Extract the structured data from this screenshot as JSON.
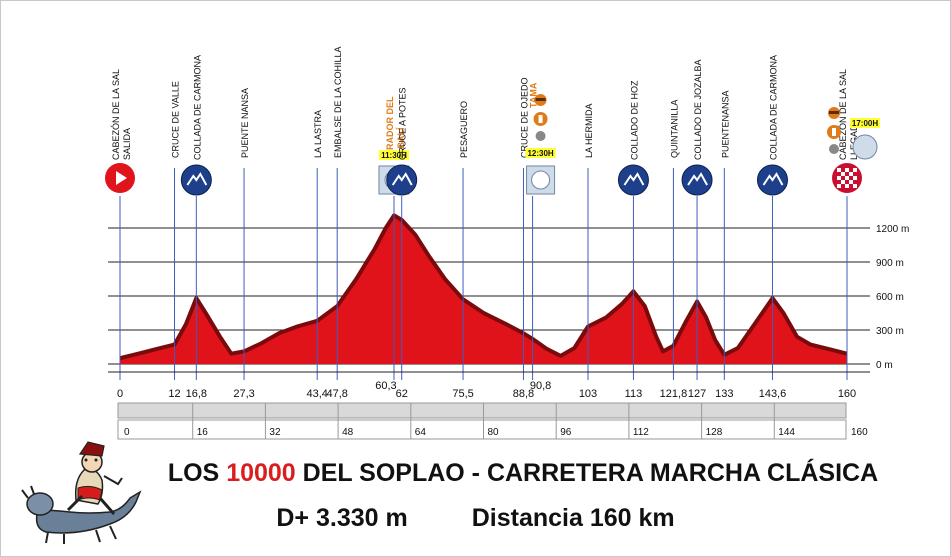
{
  "chart_data": {
    "type": "area",
    "title": "LOS 10000 DEL SOPLAO - CARRETERA MARCHA CLÁSICA",
    "title_parts": [
      "LOS ",
      "10000",
      " DEL SOPLAO  - CARRETERA MARCHA CLÁSICA"
    ],
    "subtitle_elevation": "D+ 3.330  m",
    "subtitle_distance": "Distancia 160 km",
    "xlim": [
      0,
      160
    ],
    "ylim": [
      0,
      1400
    ],
    "y_ticks": [
      {
        "value": 0,
        "label": "0 m"
      },
      {
        "value": 300,
        "label": "300 m"
      },
      {
        "value": 600,
        "label": "600 m"
      },
      {
        "value": 900,
        "label": "900 m"
      },
      {
        "value": 1200,
        "label": "1200 m"
      }
    ],
    "x_scale_ticks": [
      "0",
      "16",
      "32",
      "48",
      "64",
      "80",
      "96",
      "112",
      "128",
      "144",
      "160"
    ],
    "profile": [
      {
        "km": 0,
        "alt": 60
      },
      {
        "km": 4,
        "alt": 100
      },
      {
        "km": 8,
        "alt": 140
      },
      {
        "km": 12,
        "alt": 180
      },
      {
        "km": 14.5,
        "alt": 360
      },
      {
        "km": 16.8,
        "alt": 590
      },
      {
        "km": 19,
        "alt": 450
      },
      {
        "km": 22,
        "alt": 250
      },
      {
        "km": 24.5,
        "alt": 100
      },
      {
        "km": 27.3,
        "alt": 120
      },
      {
        "km": 31,
        "alt": 190
      },
      {
        "km": 35,
        "alt": 280
      },
      {
        "km": 39,
        "alt": 340
      },
      {
        "km": 43.4,
        "alt": 390
      },
      {
        "km": 47.8,
        "alt": 520
      },
      {
        "km": 52,
        "alt": 760
      },
      {
        "km": 56,
        "alt": 1020
      },
      {
        "km": 58.5,
        "alt": 1210
      },
      {
        "km": 60.3,
        "alt": 1320
      },
      {
        "km": 62,
        "alt": 1280
      },
      {
        "km": 65,
        "alt": 1150
      },
      {
        "km": 68,
        "alt": 960
      },
      {
        "km": 71.5,
        "alt": 760
      },
      {
        "km": 75.5,
        "alt": 580
      },
      {
        "km": 80,
        "alt": 460
      },
      {
        "km": 85,
        "alt": 360
      },
      {
        "km": 88.8,
        "alt": 280
      },
      {
        "km": 90.8,
        "alt": 230
      },
      {
        "km": 94,
        "alt": 140
      },
      {
        "km": 97,
        "alt": 80
      },
      {
        "km": 100,
        "alt": 150
      },
      {
        "km": 103,
        "alt": 340
      },
      {
        "km": 107,
        "alt": 420
      },
      {
        "km": 110.5,
        "alt": 540
      },
      {
        "km": 113,
        "alt": 650
      },
      {
        "km": 115.5,
        "alt": 520
      },
      {
        "km": 118,
        "alt": 250
      },
      {
        "km": 119.5,
        "alt": 120
      },
      {
        "km": 121.8,
        "alt": 170
      },
      {
        "km": 124.5,
        "alt": 380
      },
      {
        "km": 127,
        "alt": 560
      },
      {
        "km": 129,
        "alt": 420
      },
      {
        "km": 131,
        "alt": 220
      },
      {
        "km": 133,
        "alt": 90
      },
      {
        "km": 136,
        "alt": 150
      },
      {
        "km": 140,
        "alt": 380
      },
      {
        "km": 143.6,
        "alt": 590
      },
      {
        "km": 146,
        "alt": 460
      },
      {
        "km": 149,
        "alt": 250
      },
      {
        "km": 152,
        "alt": 180
      },
      {
        "km": 156,
        "alt": 140
      },
      {
        "km": 160,
        "alt": 100
      }
    ],
    "waypoints": [
      {
        "km": 0,
        "km_label": "0",
        "label": "CABEZÓN DE LA SAL",
        "label2": "SALIDA",
        "kind": "start",
        "orange": false
      },
      {
        "km": 12,
        "km_label": "12",
        "label": "CRUCE DE VALLE",
        "label2": "",
        "kind": "none",
        "orange": false
      },
      {
        "km": 16.8,
        "km_label": "16,8",
        "label": "COLLADA DE CARMONA",
        "label2": "",
        "kind": "climb",
        "orange": false
      },
      {
        "km": 27.3,
        "km_label": "27,3",
        "label": "PUENTE NANSA",
        "label2": "",
        "kind": "none",
        "orange": false
      },
      {
        "km": 43.4,
        "km_label": "43,4",
        "label": "LA LASTRA",
        "label2": "",
        "kind": "none",
        "orange": false
      },
      {
        "km": 47.8,
        "km_label": "47,8",
        "label": "EMBALSE DE LA COHILLA",
        "label2": "",
        "kind": "none",
        "orange": false
      },
      {
        "km": 60.3,
        "km_label": "60,3",
        "label": "MIRADOR DEL",
        "label2": "JABALÍ",
        "kind": "clock",
        "orange": true,
        "time": "11:30H"
      },
      {
        "km": 62,
        "km_label": "62",
        "label": "CRUCE A POTES",
        "label2": "",
        "kind": "climb",
        "orange": false
      },
      {
        "km": 75.5,
        "km_label": "75,5",
        "label": "PESAGUERO",
        "label2": "",
        "kind": "none",
        "orange": false
      },
      {
        "km": 88.8,
        "km_label": "88,8",
        "label": "CRUCE DE OJEDO",
        "label2": "",
        "kind": "none",
        "orange": false
      },
      {
        "km": 90.8,
        "km_label": "90,8",
        "label": "TAMA",
        "label2": "",
        "kind": "feed",
        "orange": true,
        "time": "12:30H"
      },
      {
        "km": 103,
        "km_label": "103",
        "label": "LA HERMIDA",
        "label2": "",
        "kind": "none",
        "orange": false
      },
      {
        "km": 113,
        "km_label": "113",
        "label": "COLLADO DE HOZ",
        "label2": "",
        "kind": "climb",
        "orange": false
      },
      {
        "km": 121.8,
        "km_label": "121,8",
        "label": "QUINTANILLA",
        "label2": "",
        "kind": "none",
        "orange": false
      },
      {
        "km": 127,
        "km_label": "127",
        "label": "COLLADO DE JOZALBA",
        "label2": "",
        "kind": "climb",
        "orange": false
      },
      {
        "km": 133,
        "km_label": "133",
        "label": "PUENTENANSA",
        "label2": "",
        "kind": "none",
        "orange": false
      },
      {
        "km": 143.6,
        "km_label": "143,6",
        "label": "COLLADA DE CARMONA",
        "label2": "",
        "kind": "climb",
        "orange": false
      },
      {
        "km": 160,
        "km_label": "160",
        "label": "CABEZÓN DE LA SAL",
        "label2": "LLEGADA",
        "kind": "finish",
        "orange": false,
        "time": "17:00H"
      }
    ],
    "colors": {
      "fill": "#e0131a",
      "fill_dark": "#7a0a0c",
      "climb_icon": "#1d3f8c",
      "start_icon": "#e0141b",
      "guide_line": "#3f5dbd",
      "orange_label": "#e07b1a",
      "time_badge": "#ffff33"
    },
    "legend": "none",
    "grid": true
  }
}
